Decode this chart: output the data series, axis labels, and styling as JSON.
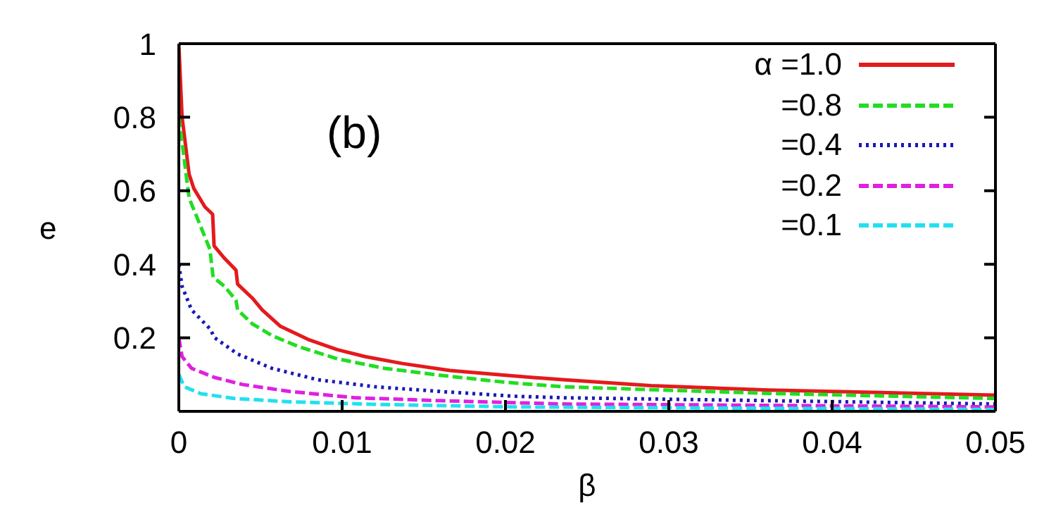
{
  "chart_data": {
    "type": "line",
    "xlabel": "β",
    "ylabel": "e",
    "annotations": [
      "(b)"
    ],
    "xlim": [
      0,
      0.05
    ],
    "xticks": [
      0,
      0.01,
      0.02,
      0.03,
      0.04,
      0.05
    ],
    "ylim": [
      0,
      1
    ],
    "yticks": [
      0.2,
      0.4,
      0.6,
      0.8,
      1
    ],
    "legend": "top right",
    "marker": "none",
    "series": [
      {
        "name": "α =1.0",
        "color": "#e41a1c",
        "line_style": "solid",
        "x": [
          0,
          0.0002,
          0.00063,
          0.00092,
          0.0016,
          0.00207,
          0.00216,
          0.0028,
          0.0035,
          0.0036,
          0.0045,
          0.0051,
          0.0062,
          0.008,
          0.0097,
          0.0114,
          0.0137,
          0.0166,
          0.02,
          0.0235,
          0.0289,
          0.0361,
          0.05
        ],
        "values": [
          1.0,
          0.8,
          0.645,
          0.606,
          0.556,
          0.536,
          0.45,
          0.416,
          0.384,
          0.346,
          0.308,
          0.276,
          0.232,
          0.194,
          0.168,
          0.149,
          0.13,
          0.111,
          0.098,
          0.086,
          0.07,
          0.058,
          0.044
        ]
      },
      {
        "name": "=0.8",
        "color": "#22dd22",
        "line_style": "dashed",
        "x": [
          0,
          0.00034,
          0.00063,
          0.0012,
          0.0019,
          0.0021,
          0.0028,
          0.0035,
          0.0036,
          0.0045,
          0.0057,
          0.0074,
          0.0097,
          0.0126,
          0.016,
          0.02,
          0.0235,
          0.0289,
          0.0361,
          0.05
        ],
        "values": [
          0.8,
          0.683,
          0.58,
          0.518,
          0.441,
          0.365,
          0.34,
          0.302,
          0.276,
          0.238,
          0.206,
          0.175,
          0.143,
          0.117,
          0.098,
          0.079,
          0.067,
          0.059,
          0.049,
          0.035
        ]
      },
      {
        "name": "=0.4",
        "color": "#1a1ab4",
        "line_style": "dotted",
        "x": [
          0,
          0.0002,
          0.00078,
          0.0019,
          0.0022,
          0.0036,
          0.0057,
          0.0085,
          0.012,
          0.016,
          0.0206,
          0.0235,
          0.0361,
          0.05
        ],
        "values": [
          0.4,
          0.34,
          0.276,
          0.225,
          0.2,
          0.156,
          0.117,
          0.086,
          0.067,
          0.054,
          0.041,
          0.037,
          0.029,
          0.02
        ]
      },
      {
        "name": "=0.2",
        "color": "#e020e0",
        "line_style": "dashed",
        "x": [
          0,
          0.0002,
          0.00078,
          0.0022,
          0.0039,
          0.0068,
          0.0108,
          0.016,
          0.0235,
          0.05
        ],
        "values": [
          0.2,
          0.149,
          0.117,
          0.092,
          0.073,
          0.054,
          0.037,
          0.029,
          0.02,
          0.012
        ]
      },
      {
        "name": "=0.1",
        "color": "#22e0f0",
        "line_style": "dashed",
        "x": [
          0,
          0.00034,
          0.00135,
          0.0034,
          0.0068,
          0.012,
          0.0206,
          0.05
        ],
        "values": [
          0.1,
          0.067,
          0.048,
          0.035,
          0.026,
          0.019,
          0.012,
          0.005
        ]
      }
    ]
  }
}
